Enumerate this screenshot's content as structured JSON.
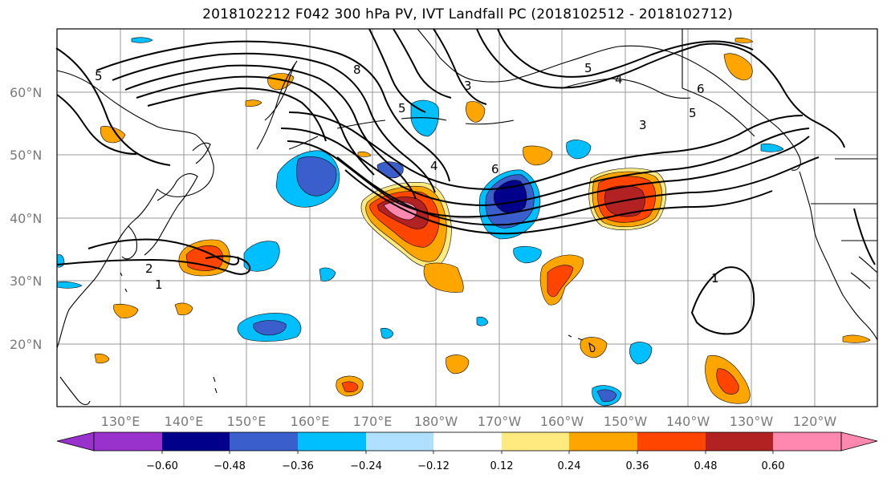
{
  "title": "2018102212 F042 300 hPa PV, IVT Landfall PC (2018102512 - 2018102712)",
  "lat_labels": [
    "60°N",
    "50°N",
    "40°N",
    "30°N",
    "20°N"
  ],
  "lon_labels": [
    "130°E",
    "140°E",
    "150°E",
    "160°E",
    "170°E",
    "180°W",
    "170°W",
    "160°W",
    "150°W",
    "140°W",
    "130°W",
    "120°W"
  ],
  "colorbar": {
    "ticks": [
      "−0.60",
      "−0.48",
      "−0.36",
      "−0.24",
      "−0.12",
      "0.12",
      "0.24",
      "0.36",
      "0.48",
      "0.60"
    ],
    "colors": [
      "#9932cc",
      "#00008b",
      "#3a5fcd",
      "#00bfff",
      "#b0e0ff",
      "#ffffff",
      "#ffea80",
      "#ffa500",
      "#ff4500",
      "#b22222",
      "#ff88b0"
    ]
  },
  "contour_labels": [
    "1",
    "2",
    "3",
    "4",
    "5",
    "6",
    "8"
  ],
  "colors": {
    "coast": "#000000",
    "grid": "#9a9a9a",
    "contour": "#000000"
  }
}
